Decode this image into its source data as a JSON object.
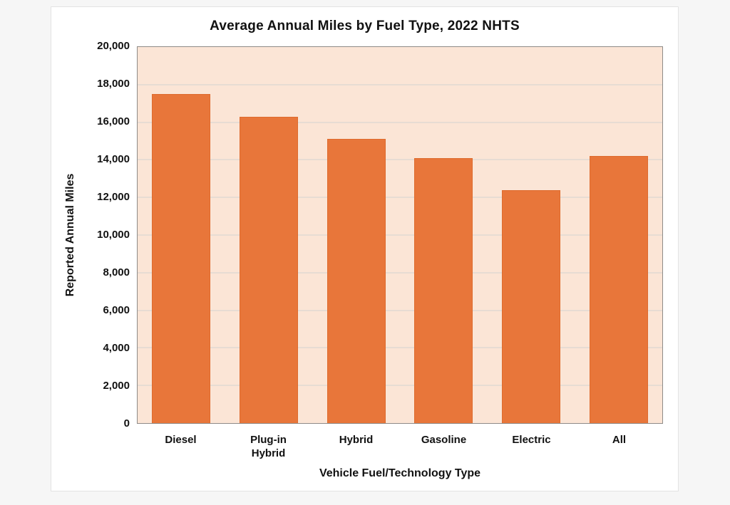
{
  "chart_data": {
    "type": "bar",
    "title": "Average Annual Miles by Fuel Type, 2022 NHTS",
    "categories": [
      "Diesel",
      "Plug-in\nHybrid",
      "Hybrid",
      "Gasoline",
      "Electric",
      "All"
    ],
    "values": [
      17500,
      16300,
      15100,
      14100,
      12400,
      14200
    ],
    "xlabel": "Vehicle Fuel/Technology Type",
    "ylabel": "Reported Annual Miles",
    "ylim": [
      0,
      20000
    ],
    "ytick_step": 2000,
    "ytick_labels": [
      "0",
      "2,000",
      "4,000",
      "6,000",
      "8,000",
      "10,000",
      "12,000",
      "14,000",
      "16,000",
      "18,000",
      "20,000"
    ],
    "grid": true,
    "legend": null,
    "colors": {
      "bar": "#E8763A",
      "bar_border": "#DE6B2E",
      "plot_background": "#FBE5D6",
      "gridline": "#E7DCD3",
      "plot_border": "#8E8B88",
      "text": "#111111"
    }
  }
}
